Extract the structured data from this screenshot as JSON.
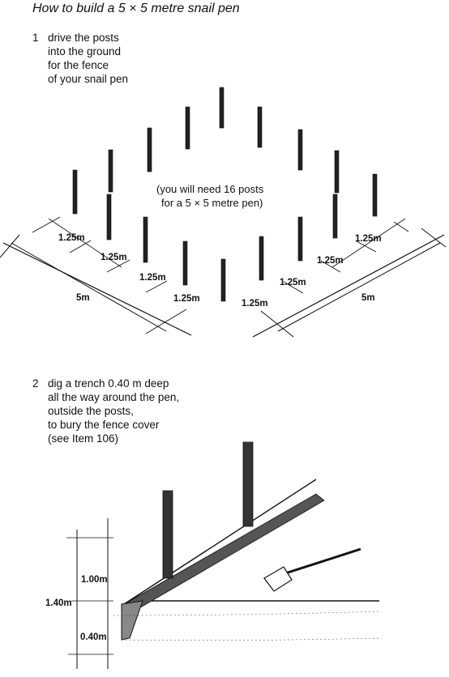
{
  "title": "How to build a 5 × 5 metre snail pen",
  "step1": {
    "number": "1",
    "lines": [
      "drive the posts",
      "into the ground",
      "for the fence",
      "of your snail pen"
    ],
    "note_lines": [
      "(you will need 16 posts",
      "for a 5 × 5 metre pen)"
    ],
    "segment_label": "1.25m",
    "side_label": "5m"
  },
  "step2": {
    "number": "2",
    "lines": [
      "dig a trench 0.40 m deep",
      "all the way around the pen,",
      "outside the posts,",
      "to bury the fence cover",
      "(see Item 106)"
    ],
    "label_total": "1.40m",
    "label_above": "1.00m",
    "label_below": "0.40m"
  }
}
